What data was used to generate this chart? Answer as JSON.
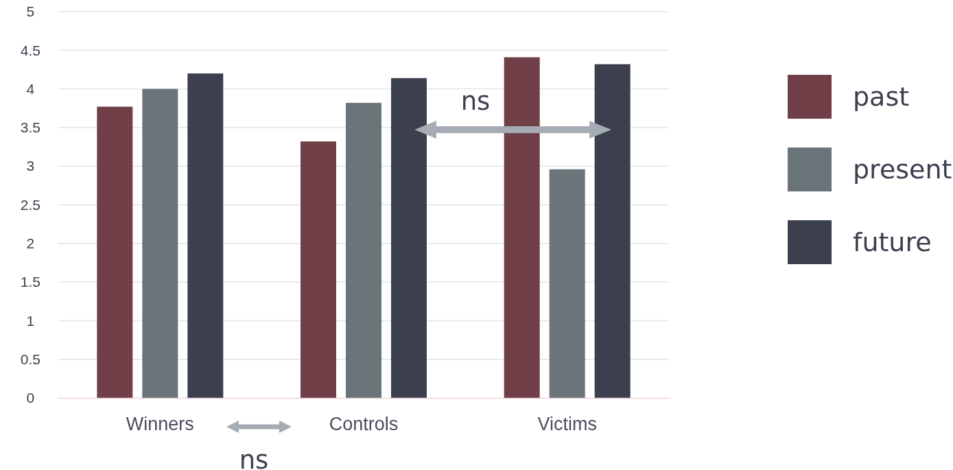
{
  "chart_data": {
    "type": "bar",
    "categories": [
      "Winners",
      "Controls",
      "Victims"
    ],
    "series": [
      {
        "name": "past",
        "color": "#703f47",
        "values": [
          3.77,
          3.32,
          4.41
        ]
      },
      {
        "name": "present",
        "color": "#6b7479",
        "values": [
          4.0,
          3.82,
          2.96
        ]
      },
      {
        "name": "future",
        "color": "#3c3f4e",
        "values": [
          4.2,
          4.14,
          4.32
        ]
      }
    ],
    "ylim": [
      0,
      5
    ],
    "yticks": [
      0,
      0.5,
      1,
      1.5,
      2,
      2.5,
      3,
      3.5,
      4,
      4.5,
      5
    ],
    "grid": "y",
    "legend": "right",
    "annotations": [
      "ns",
      "ns"
    ]
  }
}
